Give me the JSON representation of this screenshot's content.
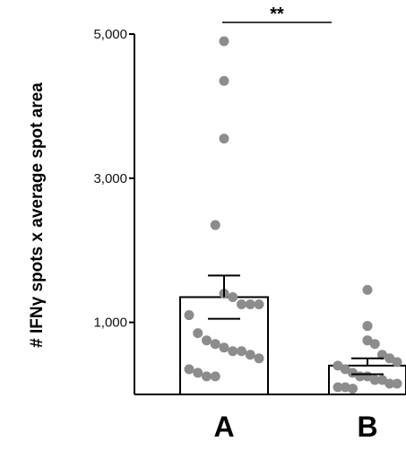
{
  "chart_data": {
    "type": "scatter",
    "ylabel": "# IFNγ spots x average spot area",
    "ylim": [
      0,
      5000
    ],
    "yticks": [
      {
        "value": 1000,
        "label": "1,000"
      },
      {
        "value": 3000,
        "label": "3,000"
      },
      {
        "value": 5000,
        "label": "5,000"
      }
    ],
    "categories": [
      "A",
      "B"
    ],
    "significance": "**",
    "groups": [
      {
        "category": "A",
        "mean": 1350,
        "sem_low": 1050,
        "sem_high": 1650,
        "points": [
          4900,
          4350,
          3550,
          2350,
          1400,
          1350,
          1250,
          1250,
          1250,
          1100,
          850,
          750,
          700,
          650,
          600,
          600,
          550,
          500,
          350,
          300,
          250,
          250
        ]
      },
      {
        "category": "B",
        "mean": 400,
        "sem_low": 280,
        "sem_high": 500,
        "points": [
          1450,
          950,
          950,
          750,
          750,
          700,
          550,
          500,
          450,
          400,
          350,
          300,
          250,
          250,
          200,
          200,
          150,
          150,
          100,
          100,
          80
        ]
      }
    ],
    "colors": {
      "point": "#8c8c8c",
      "axis": "#000000",
      "bar_fill": "#ffffff"
    }
  }
}
